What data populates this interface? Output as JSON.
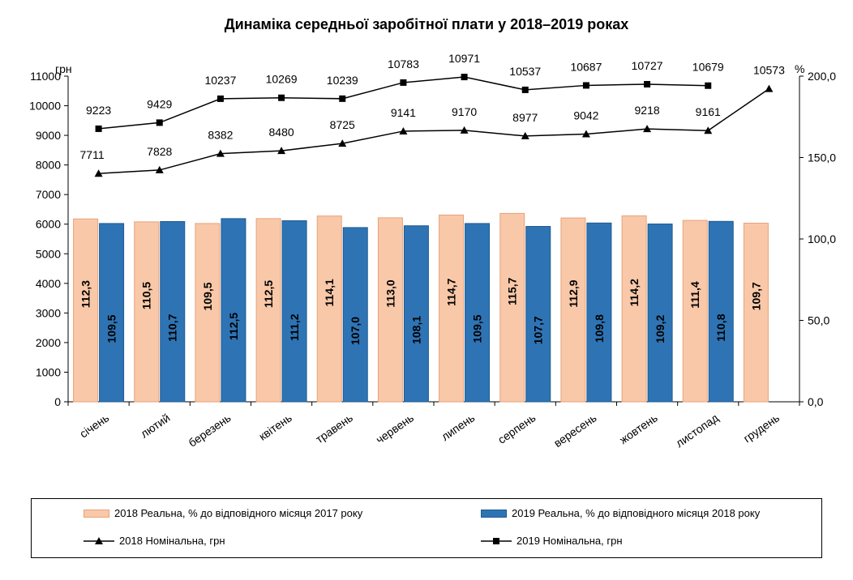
{
  "chart_data": {
    "type": "bar+line",
    "title": "Динаміка середньої заробітної плати у 2018–2019 роках",
    "left_axis_unit": "грн",
    "right_axis_unit": "%",
    "left_ylim": [
      0,
      11000
    ],
    "left_ticks": [
      "0",
      "1000",
      "2000",
      "3000",
      "4000",
      "5000",
      "6000",
      "7000",
      "8000",
      "9000",
      "10000",
      "11000"
    ],
    "right_ylim": [
      0,
      200
    ],
    "right_ticks": [
      "0,0",
      "50,0",
      "100,0",
      "150,0",
      "200,0"
    ],
    "categories": [
      "січень",
      "лютий",
      "березень",
      "квітень",
      "травень",
      "червень",
      "липень",
      "серпень",
      "вересень",
      "жовтень",
      "листопад",
      "грудень"
    ],
    "series": [
      {
        "name": "2018 Реальна, % до відповідного місяця 2017 року",
        "kind": "bar",
        "axis": "right",
        "color": "#f9c8a8",
        "edge": "#e8a27a",
        "values": [
          112.3,
          110.5,
          109.5,
          112.5,
          114.1,
          113.0,
          114.7,
          115.7,
          112.9,
          114.2,
          111.4,
          109.7
        ],
        "labels": [
          "112,3",
          "110,5",
          "109,5",
          "112,5",
          "114,1",
          "113,0",
          "114,7",
          "115,7",
          "112,9",
          "114,2",
          "111,4",
          "109,7"
        ]
      },
      {
        "name": "2019 Реальна, % до відповідного місяця 2018 року",
        "kind": "bar",
        "axis": "right",
        "color": "#2e74b5",
        "edge": "#1f5a91",
        "values": [
          109.5,
          110.7,
          112.5,
          111.2,
          107.0,
          108.1,
          109.5,
          107.7,
          109.8,
          109.2,
          110.8,
          null
        ],
        "labels": [
          "109,5",
          "110,7",
          "112,5",
          "111,2",
          "107,0",
          "108,1",
          "109,5",
          "107,7",
          "109,8",
          "109,2",
          "110,8",
          ""
        ]
      },
      {
        "name": "2018 Номінальна, грн",
        "kind": "line",
        "axis": "left",
        "marker": "triangle",
        "values": [
          7711,
          7828,
          8382,
          8480,
          8725,
          9141,
          9170,
          8977,
          9042,
          9218,
          9161,
          10573
        ],
        "labels": [
          "7711",
          "7828",
          "8382",
          "8480",
          "8725",
          "9141",
          "9170",
          "8977",
          "9042",
          "9218",
          "9161",
          "10573"
        ]
      },
      {
        "name": "2019 Номінальна, грн",
        "kind": "line",
        "axis": "left",
        "marker": "square",
        "values": [
          9223,
          9429,
          10237,
          10269,
          10239,
          10783,
          10971,
          10537,
          10687,
          10727,
          10679,
          null
        ],
        "labels": [
          "9223",
          "9429",
          "10237",
          "10269",
          "10239",
          "10783",
          "10971",
          "10537",
          "10687",
          "10727",
          "10679",
          ""
        ]
      }
    ],
    "legend_position": "bottom",
    "grid": false
  }
}
